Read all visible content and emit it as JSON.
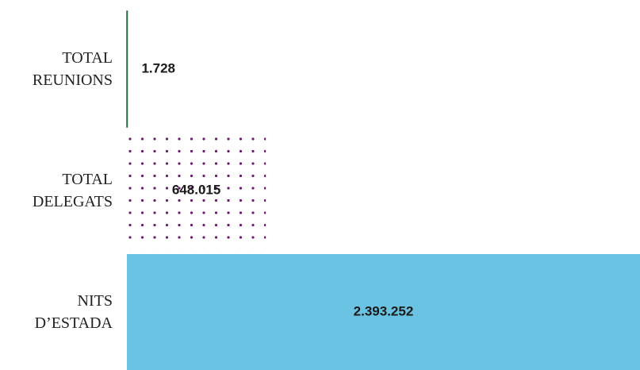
{
  "chart_data": {
    "type": "hbar",
    "categories": [
      "TOTAL REUNIONS",
      "TOTAL DELEGATS",
      "NITS D’ESTADA"
    ],
    "values": [
      1728,
      648015,
      2393252
    ],
    "value_labels": [
      "1.728",
      "648.015",
      "2.393.252"
    ],
    "colors": [
      "#1f6b3c",
      "#6a1a6e",
      "#6bc3e4"
    ],
    "fills": [
      "solid",
      "dots",
      "solid"
    ],
    "xlim": [
      0,
      2393252
    ]
  }
}
